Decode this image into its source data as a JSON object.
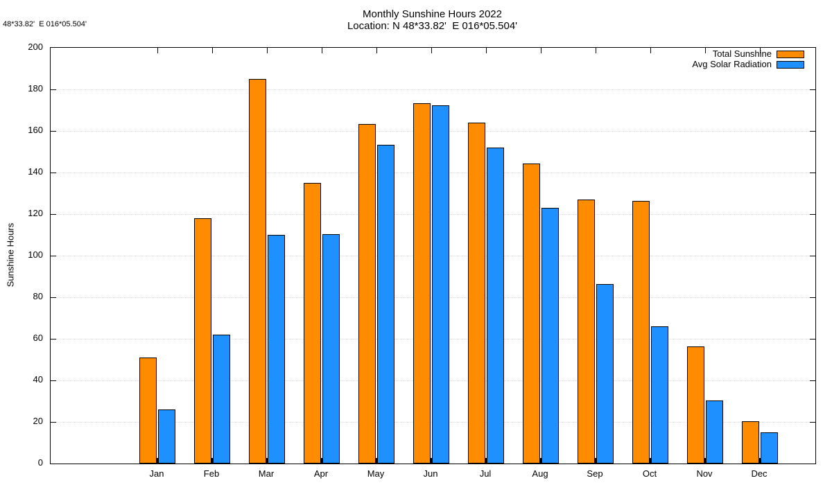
{
  "annotation_top_left": "48*33.82'  E 016*05.504'",
  "chart_data": {
    "type": "bar",
    "title": "Monthly Sunshine Hours 2022",
    "subtitle": "Location: N 48*33.82'  E 016*05.504'",
    "ylabel": "Sunshine Hours",
    "xlabel": "",
    "ylim": [
      0,
      200
    ],
    "ytick_step": 20,
    "y_tick_labels": [
      "0",
      "20",
      "40",
      "60",
      "80",
      "100",
      "120",
      "140",
      "160",
      "180",
      "200"
    ],
    "grid": "dotted horizontal gridlines at each y tick",
    "legend_position": "top-right inside plot, swatches right of labels",
    "frame": "full box border with mirrored tick marks",
    "categories": [
      "Jan",
      "Feb",
      "Mar",
      "Apr",
      "May",
      "Jun",
      "Jul",
      "Aug",
      "Sep",
      "Oct",
      "Nov",
      "Dec"
    ],
    "series": [
      {
        "name": "Total Sunshine",
        "color": "#FF8C00",
        "values": [
          51,
          118,
          185,
          135,
          163.5,
          173.5,
          164,
          144.5,
          127,
          126.5,
          56.5,
          20.5
        ]
      },
      {
        "name": "Avg Solar Radiation",
        "color": "#1E90FF",
        "values": [
          26,
          62,
          110,
          110.5,
          153.5,
          172.5,
          152,
          123,
          86.5,
          66,
          30.5,
          15
        ]
      }
    ]
  }
}
